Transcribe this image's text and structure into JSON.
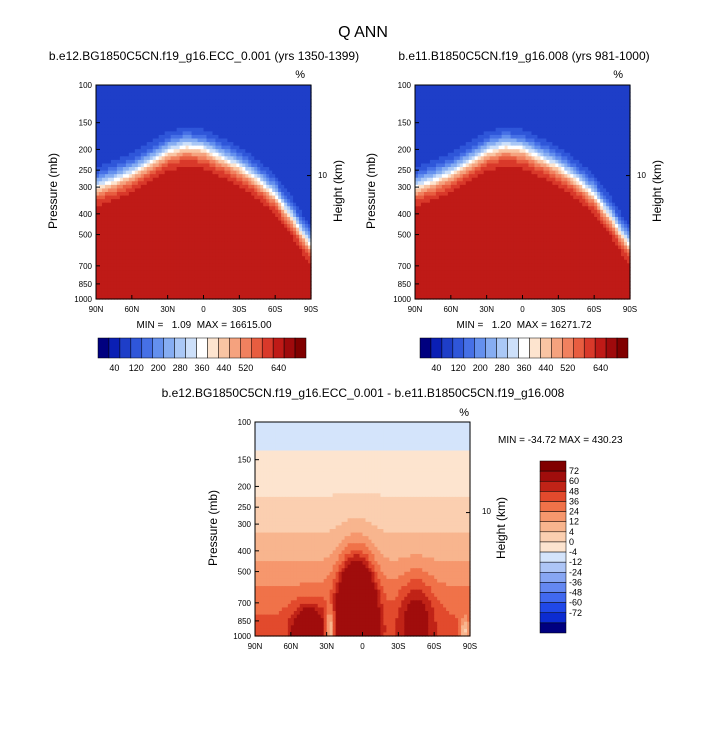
{
  "title": "Q ANN",
  "colors": {
    "upper_scale": [
      "#00007f",
      "#0a1fb4",
      "#1e3ec8",
      "#2f56d9",
      "#4670e6",
      "#6490ee",
      "#86adf2",
      "#aac8f6",
      "#cde0fa",
      "#ffffff",
      "#fde4cf",
      "#f9c4a3",
      "#f5a27e",
      "#f1815f",
      "#e85d40",
      "#d9392a",
      "#bf1a17",
      "#9f0a0c",
      "#800000"
    ],
    "diff_scale": [
      "#00007f",
      "#0c2cd1",
      "#2048e8",
      "#4169ef",
      "#6488f1",
      "#87a6f3",
      "#adc5f6",
      "#d4e4fb",
      "#fde4cf",
      "#fbcfb0",
      "#f8b58e",
      "#f6976d",
      "#f07249",
      "#e24a2d",
      "#c02317",
      "#a00d0c",
      "#800000"
    ]
  },
  "chart_data": [
    {
      "type": "heatmap",
      "title": "b.e12.BG1850C5CN.f19_g16.ECC_0.001 (yrs 1350-1399)",
      "units": "%",
      "xlabel": "",
      "ylabel": "Pressure (mb)",
      "y2label": "Height (km)",
      "x_ticks": [
        "90N",
        "60N",
        "30N",
        "0",
        "30S",
        "60S",
        "90S"
      ],
      "y_ticks": [
        "100",
        "150",
        "200",
        "250",
        "300",
        "400",
        "500",
        "700",
        "850",
        "1000"
      ],
      "y2_ticks": [
        "10"
      ],
      "ylim": [
        1000,
        100
      ],
      "y_scale": "log",
      "stats": "MIN =   1.09  MAX = 16615.00",
      "colorbar_labels": [
        "40",
        "120",
        "200",
        "280",
        "360",
        "440",
        "520",
        "640"
      ],
      "levels": [
        20,
        40,
        80,
        120,
        160,
        200,
        240,
        280,
        320,
        360,
        400,
        440,
        480,
        520,
        560,
        600,
        640
      ],
      "transition_pressure_mb": [
        [
          90,
          300
        ],
        [
          75,
          280
        ],
        [
          60,
          258
        ],
        [
          45,
          230
        ],
        [
          30,
          205
        ],
        [
          15,
          193
        ],
        [
          0,
          198
        ],
        [
          -15,
          218
        ],
        [
          -30,
          240
        ],
        [
          -45,
          275
        ],
        [
          -60,
          325
        ],
        [
          -75,
          420
        ],
        [
          -90,
          560
        ]
      ],
      "max_value": 16615.0,
      "min_value": 1.09
    },
    {
      "type": "heatmap",
      "title": "b.e11.B1850C5CN.f19_g16.008 (yrs 981-1000)",
      "units": "%",
      "xlabel": "",
      "ylabel": "Pressure (mb)",
      "y2label": "Height (km)",
      "x_ticks": [
        "90N",
        "60N",
        "30N",
        "0",
        "30S",
        "60S",
        "90S"
      ],
      "y_ticks": [
        "100",
        "150",
        "200",
        "250",
        "300",
        "400",
        "500",
        "700",
        "850",
        "1000"
      ],
      "y2_ticks": [
        "10"
      ],
      "ylim": [
        1000,
        100
      ],
      "y_scale": "log",
      "stats": "MIN =   1.20  MAX = 16271.72",
      "colorbar_labels": [
        "40",
        "120",
        "200",
        "280",
        "360",
        "440",
        "520",
        "640"
      ],
      "levels": [
        20,
        40,
        80,
        120,
        160,
        200,
        240,
        280,
        320,
        360,
        400,
        440,
        480,
        520,
        560,
        600,
        640
      ],
      "transition_pressure_mb": [
        [
          90,
          300
        ],
        [
          75,
          280
        ],
        [
          60,
          258
        ],
        [
          45,
          230
        ],
        [
          30,
          205
        ],
        [
          15,
          193
        ],
        [
          0,
          198
        ],
        [
          -15,
          218
        ],
        [
          -30,
          240
        ],
        [
          -45,
          275
        ],
        [
          -60,
          325
        ],
        [
          -75,
          420
        ],
        [
          -90,
          560
        ]
      ],
      "max_value": 16271.72,
      "min_value": 1.2
    },
    {
      "type": "heatmap",
      "title": "b.e12.BG1850C5CN.f19_g16.ECC_0.001 - b.e11.B1850C5CN.f19_g16.008",
      "units": "%",
      "xlabel": "",
      "ylabel": "Pressure (mb)",
      "y2label": "Height (km)",
      "x_ticks": [
        "90N",
        "60N",
        "30N",
        "0",
        "30S",
        "60S",
        "90S"
      ],
      "y_ticks": [
        "100",
        "150",
        "200",
        "250",
        "300",
        "400",
        "500",
        "700",
        "850",
        "1000"
      ],
      "y2_ticks": [
        "10"
      ],
      "ylim": [
        1000,
        100
      ],
      "y_scale": "log",
      "stats": "MIN = -34.72  MAX = 430.23",
      "colorbar_labels": [
        "72",
        "60",
        "48",
        "36",
        "24",
        "12",
        "4",
        "0",
        "-4",
        "-12",
        "-24",
        "-36",
        "-48",
        "-60",
        "-72"
      ],
      "levels": [
        -72,
        -60,
        -48,
        -36,
        -24,
        -12,
        -4,
        0,
        4,
        12,
        24,
        36,
        48,
        60,
        72
      ],
      "max_value": 430.23,
      "min_value": -34.72
    }
  ]
}
